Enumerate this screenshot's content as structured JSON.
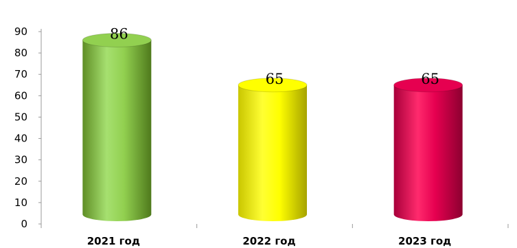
{
  "chart_data": {
    "type": "bar",
    "title": "",
    "xlabel": "",
    "ylabel": "",
    "categories": [
      "2021 год",
      "2022 год",
      "2023 год"
    ],
    "values": [
      86,
      65,
      65
    ],
    "ylim": [
      0,
      90
    ],
    "yticks": [
      0,
      10,
      20,
      30,
      40,
      50,
      60,
      70,
      80,
      90
    ],
    "grid": false,
    "legend": "none",
    "colors": [
      "#92d050",
      "#ffff00",
      "#e60050"
    ],
    "data_labels": [
      "86",
      "65",
      "65"
    ]
  }
}
